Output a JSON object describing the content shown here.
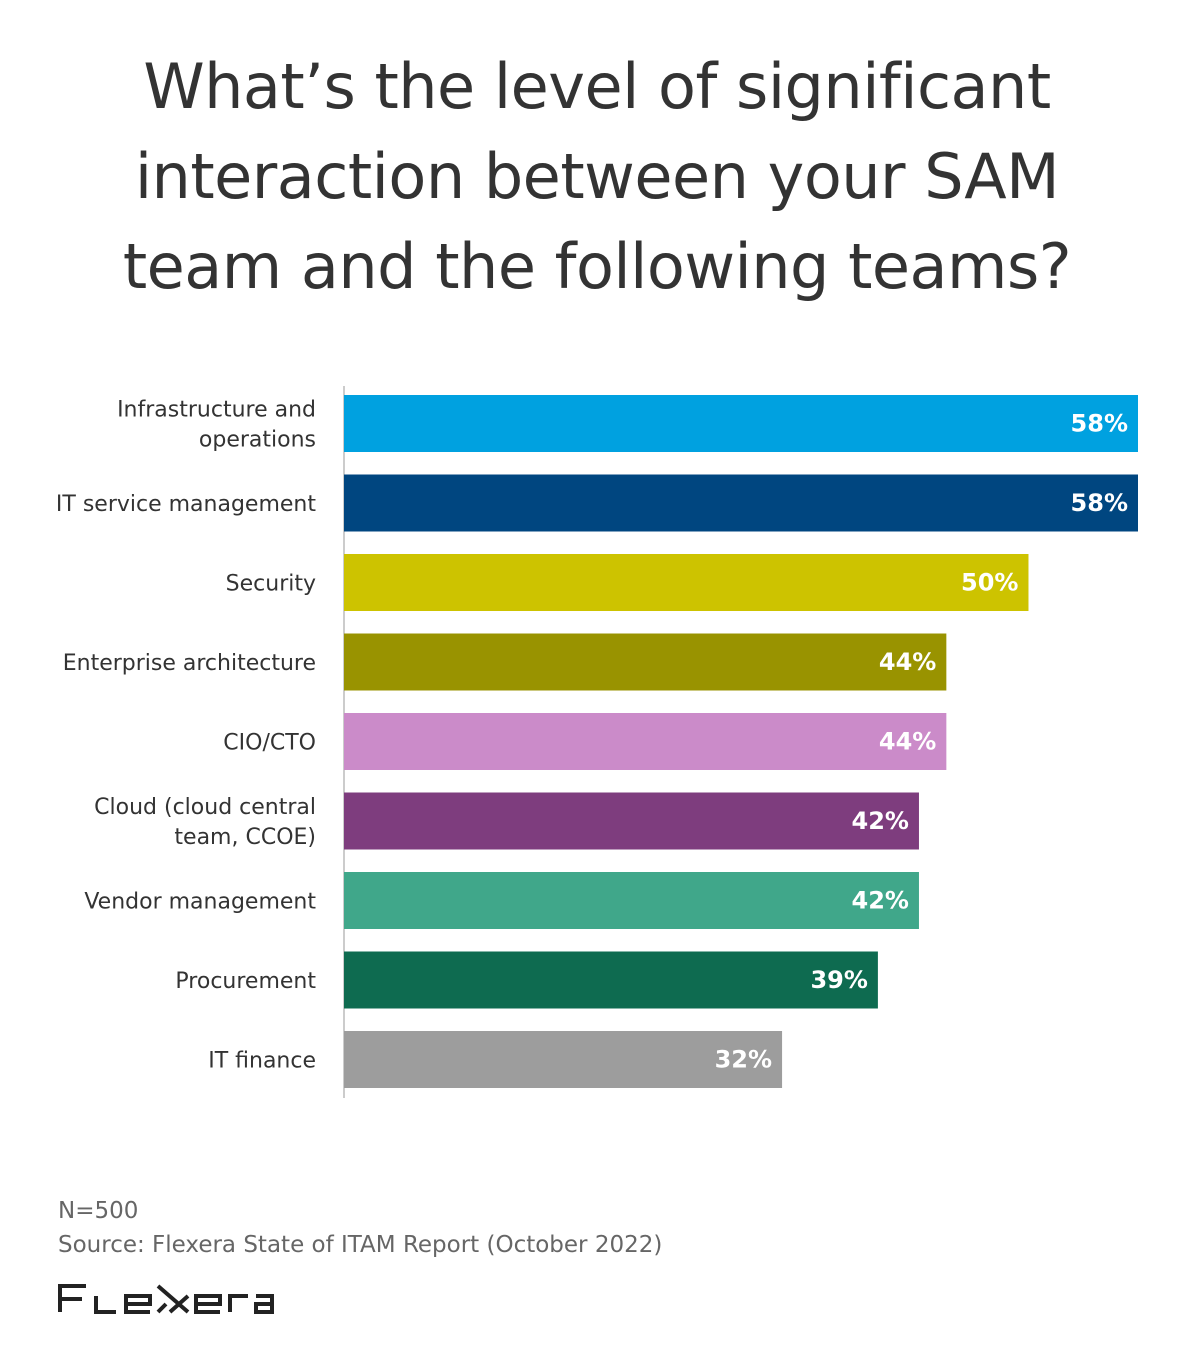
{
  "chart_data": {
    "type": "bar",
    "orientation": "horizontal",
    "title": "What’s the level of significant interaction between your SAM team and the following teams?",
    "title_lines": [
      "What’s the level of significant",
      "interaction between your SAM",
      "team and the following teams?"
    ],
    "categories": [
      [
        "Infrastructure and",
        "operations"
      ],
      [
        "IT service management"
      ],
      [
        "Security"
      ],
      [
        "Enterprise architecture"
      ],
      [
        "CIO/CTO"
      ],
      [
        "Cloud (cloud central",
        "team, CCOE)"
      ],
      [
        "Vendor management"
      ],
      [
        "Procurement"
      ],
      [
        "IT finance"
      ]
    ],
    "values": [
      58,
      58,
      50,
      44,
      44,
      42,
      42,
      39,
      32
    ],
    "value_labels": [
      "58%",
      "58%",
      "50%",
      "44%",
      "44%",
      "42%",
      "42%",
      "39%",
      "32%"
    ],
    "colors": [
      "#00a1e0",
      "#004680",
      "#cdc300",
      "#999300",
      "#cb8bc9",
      "#7e3d7e",
      "#40a78a",
      "#0e6b50",
      "#9d9d9d"
    ],
    "xlim": [
      0,
      58
    ],
    "xlabel": "",
    "ylabel": "",
    "grid": false
  },
  "footer": {
    "n": "N=500",
    "source": "Source: Flexera State of ITAM Report (October 2022)"
  },
  "logo": "Flexera"
}
